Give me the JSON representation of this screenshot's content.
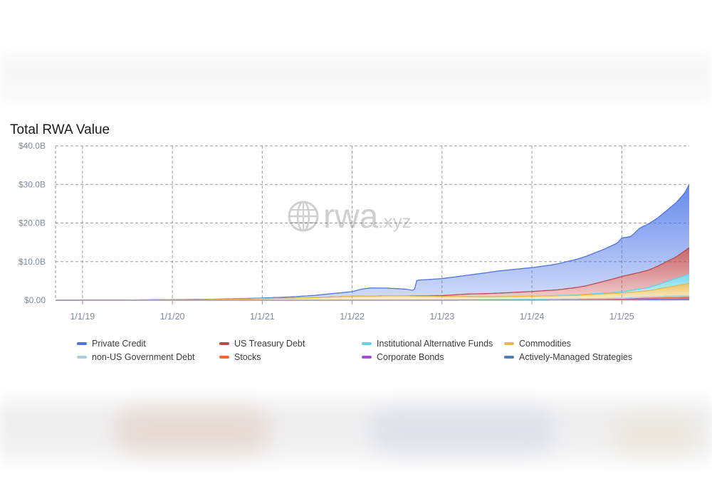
{
  "chart_data": {
    "type": "area",
    "title": "Total RWA Value",
    "watermark": "rwa.xyz",
    "xlabel": "",
    "ylabel": "",
    "ylim": [
      0,
      40
    ],
    "y_ticks": [
      "$0.00",
      "$10.0B",
      "$20.0B",
      "$30.0B",
      "$40.0B"
    ],
    "x_ticks": [
      "1/1/19",
      "1/1/20",
      "1/1/21",
      "1/1/22",
      "1/1/23",
      "1/1/24",
      "1/1/25"
    ],
    "xlim_years": [
      2018.7,
      2025.75
    ],
    "grid": true,
    "legend_position": "bottom",
    "unit": "billions USD",
    "stacked": true,
    "series": [
      {
        "name": "Actively-Managed Strategies",
        "color": "#4f7fb4",
        "points": [
          [
            2018.7,
            0
          ],
          [
            2024.0,
            0
          ],
          [
            2025.0,
            0.05
          ],
          [
            2025.5,
            0.15
          ],
          [
            2025.75,
            0.2
          ]
        ]
      },
      {
        "name": "Corporate Bonds",
        "color": "#a64cd8",
        "points": [
          [
            2018.7,
            0
          ],
          [
            2023.0,
            0
          ],
          [
            2024.0,
            0.05
          ],
          [
            2025.0,
            0.1
          ],
          [
            2025.75,
            0.15
          ]
        ]
      },
      {
        "name": "Stocks",
        "color": "#f06b2b",
        "points": [
          [
            2018.7,
            0
          ],
          [
            2024.5,
            0
          ],
          [
            2025.0,
            0.1
          ],
          [
            2025.2,
            0.25
          ],
          [
            2025.5,
            0.4
          ],
          [
            2025.75,
            0.45
          ]
        ]
      },
      {
        "name": "non-US Government Debt",
        "color": "#a9cfe0",
        "points": [
          [
            2018.7,
            0
          ],
          [
            2022.0,
            0.02
          ],
          [
            2023.0,
            0.1
          ],
          [
            2024.0,
            0.2
          ],
          [
            2025.0,
            0.3
          ],
          [
            2025.75,
            0.4
          ]
        ]
      },
      {
        "name": "Commodities",
        "color": "#e8b94a",
        "points": [
          [
            2018.7,
            0
          ],
          [
            2019.5,
            0.02
          ],
          [
            2020.5,
            0.2
          ],
          [
            2021.5,
            0.6
          ],
          [
            2022.0,
            1.0
          ],
          [
            2022.5,
            1.1
          ],
          [
            2023.0,
            0.9
          ],
          [
            2023.5,
            0.7
          ],
          [
            2024.0,
            0.8
          ],
          [
            2024.5,
            0.9
          ],
          [
            2025.0,
            1.3
          ],
          [
            2025.3,
            1.6
          ],
          [
            2025.6,
            2.6
          ],
          [
            2025.75,
            3.2
          ]
        ]
      },
      {
        "name": "Institutional Alternative Funds",
        "color": "#5fd3ea",
        "points": [
          [
            2018.7,
            0
          ],
          [
            2024.0,
            0
          ],
          [
            2024.5,
            0.1
          ],
          [
            2025.0,
            0.3
          ],
          [
            2025.3,
            0.8
          ],
          [
            2025.5,
            1.5
          ],
          [
            2025.75,
            2.4
          ]
        ]
      },
      {
        "name": "US Treasury Debt",
        "color": "#c0484d",
        "points": [
          [
            2018.7,
            0
          ],
          [
            2022.5,
            0
          ],
          [
            2023.0,
            0.2
          ],
          [
            2023.3,
            0.7
          ],
          [
            2023.6,
            0.9
          ],
          [
            2024.0,
            1.2
          ],
          [
            2024.3,
            1.5
          ],
          [
            2024.6,
            2.2
          ],
          [
            2024.9,
            3.5
          ],
          [
            2025.0,
            4.0
          ],
          [
            2025.2,
            4.3
          ],
          [
            2025.4,
            4.8
          ],
          [
            2025.6,
            5.6
          ],
          [
            2025.75,
            6.8
          ]
        ]
      },
      {
        "name": "Private Credit",
        "color": "#4b74e8",
        "points": [
          [
            2018.7,
            0
          ],
          [
            2019.0,
            0.02
          ],
          [
            2019.5,
            0.04
          ],
          [
            2020.0,
            0.06
          ],
          [
            2020.5,
            0.08
          ],
          [
            2021.0,
            0.15
          ],
          [
            2021.3,
            0.3
          ],
          [
            2021.6,
            0.6
          ],
          [
            2021.8,
            0.9
          ],
          [
            2022.0,
            1.2
          ],
          [
            2022.1,
            1.8
          ],
          [
            2022.2,
            2.1
          ],
          [
            2022.4,
            2.0
          ],
          [
            2022.6,
            1.7
          ],
          [
            2022.69,
            1.3
          ],
          [
            2022.72,
            4.0
          ],
          [
            2023.0,
            4.4
          ],
          [
            2023.3,
            4.9
          ],
          [
            2023.6,
            5.7
          ],
          [
            2024.0,
            6.2
          ],
          [
            2024.2,
            6.5
          ],
          [
            2024.5,
            7.3
          ],
          [
            2024.8,
            8.3
          ],
          [
            2024.95,
            9.0
          ],
          [
            2025.0,
            10.0
          ],
          [
            2025.1,
            9.8
          ],
          [
            2025.2,
            11.5
          ],
          [
            2025.4,
            12.5
          ],
          [
            2025.6,
            14.0
          ],
          [
            2025.7,
            15.0
          ],
          [
            2025.75,
            16.4
          ]
        ]
      }
    ]
  },
  "legend": {
    "items": [
      {
        "label": "Private Credit",
        "color": "#4b74e8"
      },
      {
        "label": "US Treasury Debt",
        "color": "#c0484d"
      },
      {
        "label": "Institutional Alternative Funds",
        "color": "#5fd3ea"
      },
      {
        "label": "Commodities",
        "color": "#e8b94a"
      },
      {
        "label": "non-US Government Debt",
        "color": "#a9cfe0"
      },
      {
        "label": "Stocks",
        "color": "#f06b2b"
      },
      {
        "label": "Corporate Bonds",
        "color": "#a64cd8"
      },
      {
        "label": "Actively-Managed Strategies",
        "color": "#4f7fb4"
      }
    ]
  }
}
